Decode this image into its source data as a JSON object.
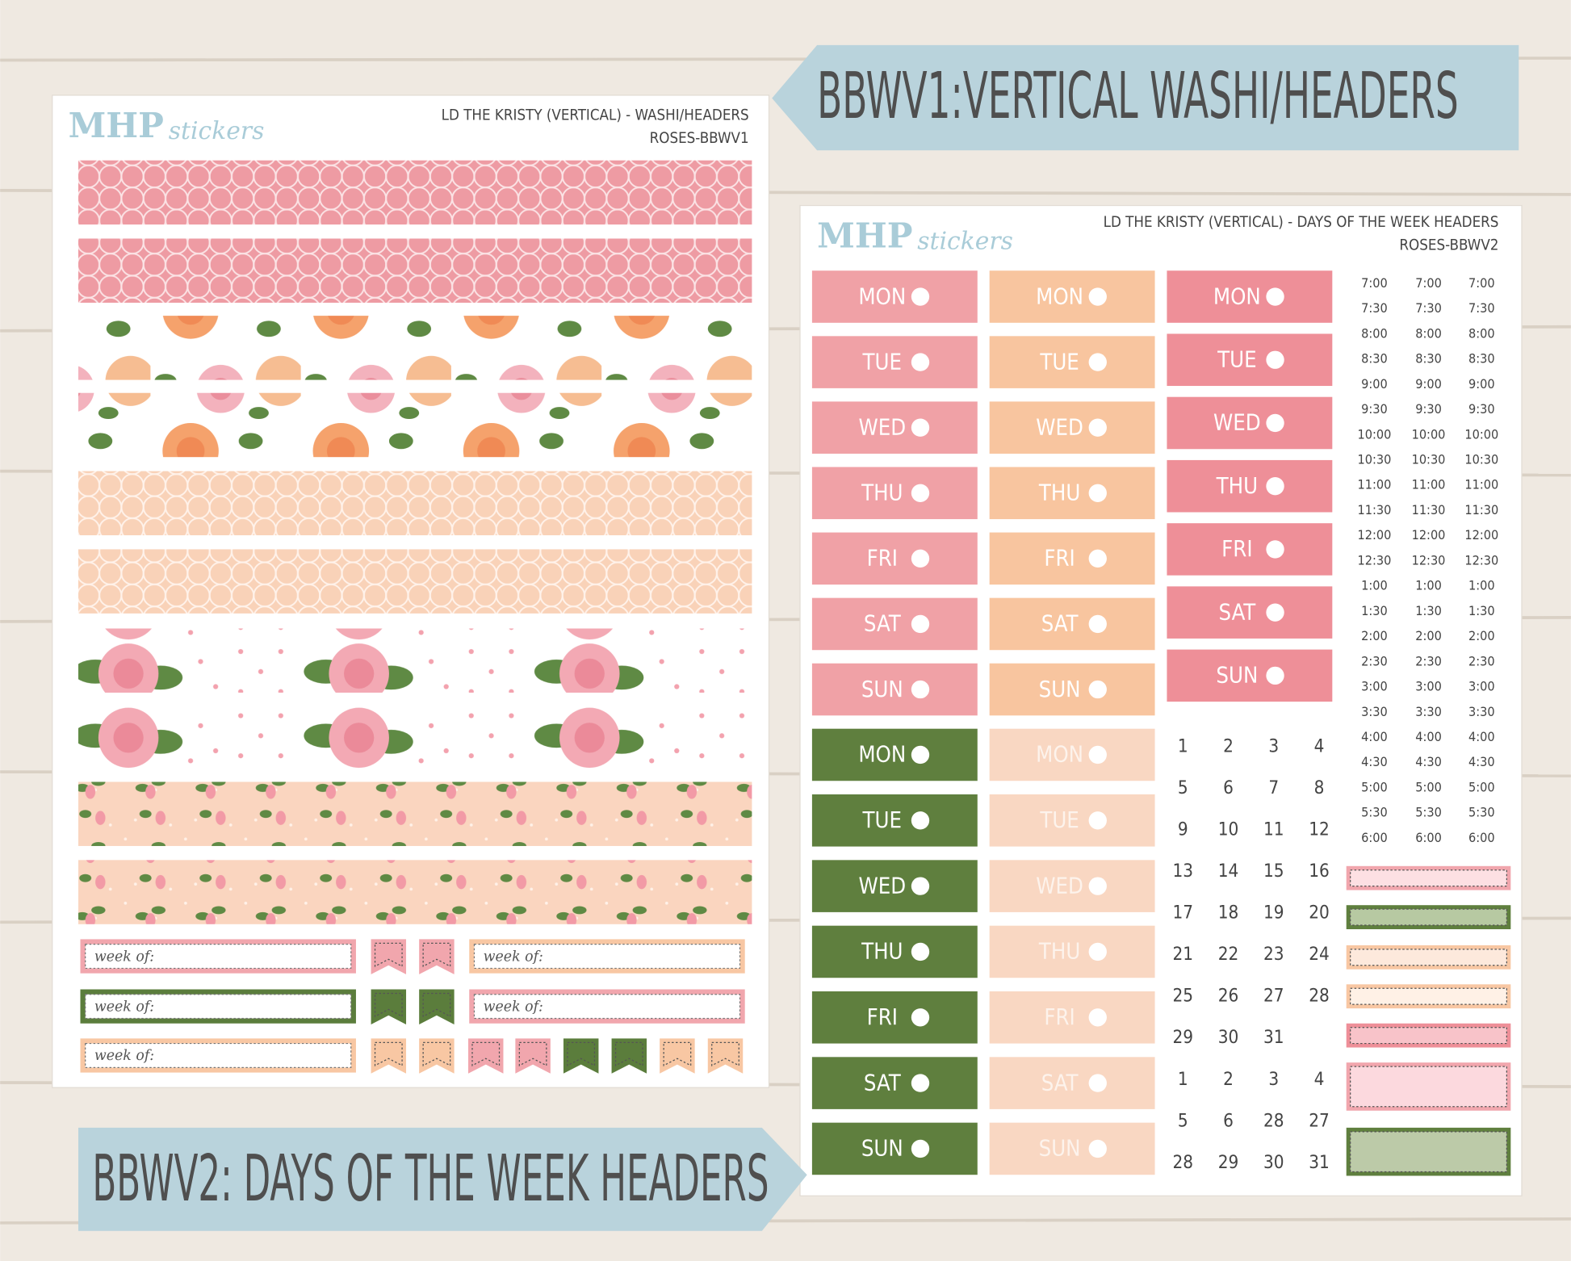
{
  "banners": {
    "top": "BBWV1:VERTICAL WASHI/HEADERS",
    "bottom": "BBWV2: DAYS OF THE WEEK HEADERS"
  },
  "sheets": [
    {
      "logo": {
        "brand": "MHP",
        "script": "stickers"
      },
      "title": "LD THE KRISTY (VERTICAL) - WASHI/HEADERS",
      "code": "ROSES-BBWV1",
      "week_label": "week of:"
    },
    {
      "logo": {
        "brand": "MHP",
        "script": "stickers"
      },
      "title": "LD THE KRISTY (VERTICAL) - DAYS OF THE WEEK HEADERS",
      "code": "ROSES-BBWV2",
      "days": [
        "MON",
        "TUE",
        "WED",
        "THU",
        "FRI",
        "SAT",
        "SUN"
      ],
      "times": [
        "7:00",
        "7:30",
        "8:00",
        "8:30",
        "9:00",
        "9:30",
        "10:00",
        "10:30",
        "11:00",
        "11:30",
        "12:00",
        "12:30",
        "1:00",
        "1:30",
        "2:00",
        "2:30",
        "3:00",
        "3:30",
        "4:00",
        "4:30",
        "5:00",
        "5:30",
        "6:00"
      ],
      "dates": [
        [
          1,
          2,
          3,
          4
        ],
        [
          5,
          6,
          7,
          8
        ],
        [
          9,
          10,
          11,
          12
        ],
        [
          13,
          14,
          15,
          16
        ],
        [
          17,
          18,
          19,
          20
        ],
        [
          21,
          22,
          23,
          24
        ],
        [
          25,
          26,
          27,
          28
        ],
        [
          29,
          30,
          31
        ],
        [
          1,
          2,
          3,
          4
        ],
        [
          5,
          6,
          28,
          27
        ],
        [
          28,
          29,
          30,
          31
        ]
      ]
    }
  ]
}
